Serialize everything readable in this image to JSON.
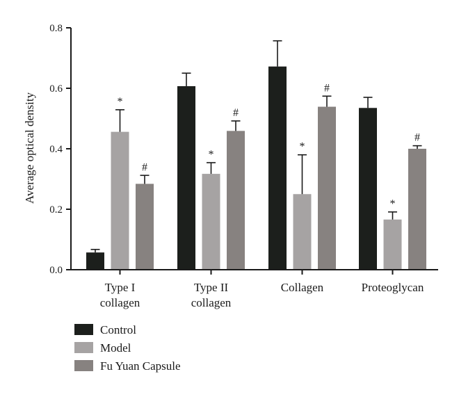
{
  "chart_data": {
    "type": "bar",
    "ylabel": "Average optical density",
    "ylim": [
      0,
      0.8
    ],
    "yticks": [
      "0.0",
      "0.2",
      "0.4",
      "0.6",
      "0.8"
    ],
    "yticks_values": [
      0,
      0.2,
      0.4,
      0.6,
      0.8
    ],
    "categories": [
      [
        "Type I",
        "collagen"
      ],
      [
        "Type II",
        "collagen"
      ],
      [
        "Collagen"
      ],
      [
        "Proteoglycan"
      ]
    ],
    "series": [
      {
        "name": "Control",
        "color": "#1c1f1c",
        "values": [
          0.057,
          0.607,
          0.672,
          0.535
        ],
        "errors": [
          0.01,
          0.043,
          0.085,
          0.035
        ],
        "annotations": [
          "",
          "",
          "",
          ""
        ]
      },
      {
        "name": "Model",
        "color": "#a6a3a3",
        "values": [
          0.456,
          0.317,
          0.25,
          0.166
        ],
        "errors": [
          0.073,
          0.037,
          0.13,
          0.025
        ],
        "annotations": [
          "*",
          "*",
          "*",
          "*"
        ]
      },
      {
        "name": "Fu Yuan Capsule",
        "color": "#878280",
        "values": [
          0.284,
          0.459,
          0.539,
          0.4
        ],
        "errors": [
          0.028,
          0.033,
          0.035,
          0.01
        ],
        "annotations": [
          "#",
          "#",
          "#",
          "#"
        ]
      }
    ],
    "grid": false,
    "legend_position": "bottom-left"
  }
}
